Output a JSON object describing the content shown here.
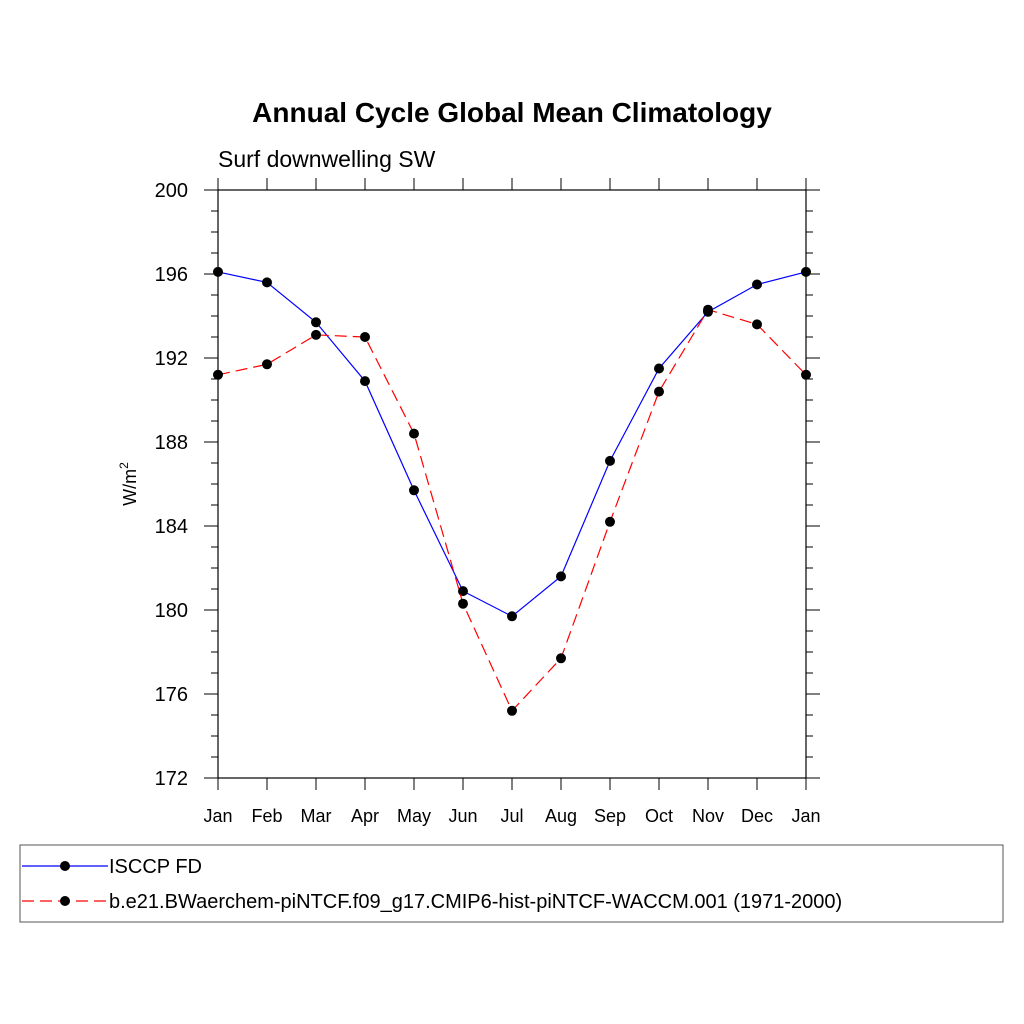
{
  "chart_data": {
    "type": "line",
    "title": "Annual Cycle Global Mean Climatology",
    "subtitle": "Surf downwelling SW",
    "ylabel": "W/m",
    "ylabel_sup": "2",
    "xlabel": "",
    "categories": [
      "Jan",
      "Feb",
      "Mar",
      "Apr",
      "May",
      "Jun",
      "Jul",
      "Aug",
      "Sep",
      "Oct",
      "Nov",
      "Dec",
      "Jan"
    ],
    "ylim": [
      172,
      200
    ],
    "yticks": [
      172,
      176,
      180,
      184,
      188,
      192,
      196,
      200
    ],
    "grid": false,
    "legend_position": "bottom",
    "series": [
      {
        "name": "ISCCP FD",
        "color": "#0000ff",
        "dash": "solid",
        "values": [
          196.1,
          195.6,
          193.7,
          190.9,
          185.7,
          180.9,
          179.7,
          181.6,
          187.1,
          191.5,
          194.2,
          195.5,
          196.1
        ]
      },
      {
        "name": "b.e21.BWaerchem-piNTCF.f09_g17.CMIP6-hist-piNTCF-WACCM.001 (1971-2000)",
        "color": "#ff0000",
        "dash": "dashed",
        "values": [
          191.2,
          191.7,
          193.1,
          193.0,
          188.4,
          180.3,
          175.2,
          177.7,
          184.2,
          190.4,
          194.3,
          193.6,
          191.2
        ]
      }
    ]
  }
}
